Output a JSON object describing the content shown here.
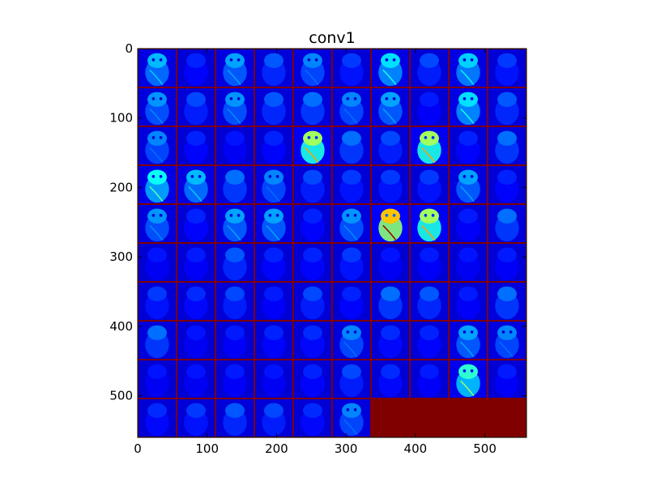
{
  "chart_data": {
    "type": "heatmap",
    "title": "conv1",
    "xlabel": "",
    "ylabel": "",
    "xlim": [
      0,
      560
    ],
    "ylim": [
      560,
      0
    ],
    "x_ticks": [
      "0",
      "100",
      "200",
      "300",
      "400",
      "500"
    ],
    "y_ticks": [
      "0",
      "100",
      "200",
      "300",
      "400",
      "500"
    ],
    "colormap": "jet",
    "grid_layout": {
      "rows": 10,
      "cols": 10,
      "filters_shown": 96,
      "empty_cells": 4
    },
    "filter_activation_levels": [
      [
        0.25,
        0.05,
        0.22,
        0.12,
        0.18,
        0.08,
        0.3,
        0.1,
        0.28,
        0.08
      ],
      [
        0.2,
        0.1,
        0.2,
        0.12,
        0.15,
        0.18,
        0.22,
        0.04,
        0.3,
        0.12
      ],
      [
        0.18,
        0.05,
        0.03,
        0.05,
        0.55,
        0.15,
        0.1,
        0.55,
        0.05,
        0.15
      ],
      [
        0.35,
        0.25,
        0.15,
        0.18,
        0.1,
        0.08,
        0.08,
        0.08,
        0.22,
        0.05
      ],
      [
        0.2,
        0.05,
        0.22,
        0.22,
        0.05,
        0.2,
        0.75,
        0.55,
        0.04,
        0.15
      ],
      [
        0.03,
        0.04,
        0.12,
        0.05,
        0.05,
        0.08,
        0.03,
        0.04,
        0.03,
        0.04
      ],
      [
        0.08,
        0.06,
        0.1,
        0.04,
        0.1,
        0.05,
        0.15,
        0.12,
        0.04,
        0.15
      ],
      [
        0.15,
        0.03,
        0.04,
        0.05,
        0.06,
        0.18,
        0.06,
        0.05,
        0.22,
        0.18
      ],
      [
        0.03,
        0.03,
        0.04,
        0.03,
        0.05,
        0.1,
        0.06,
        0.04,
        0.4,
        0.04
      ],
      [
        0.06,
        0.08,
        0.12,
        0.1,
        0.06,
        0.18,
        null,
        null,
        null,
        null
      ]
    ],
    "colors": {
      "background": "#00008f",
      "separator": "#7f0000",
      "empty_fill": "#800000",
      "low": "#0000ff",
      "mid": "#00ffff",
      "high": "#ffff00",
      "peak": "#ff0000"
    }
  }
}
